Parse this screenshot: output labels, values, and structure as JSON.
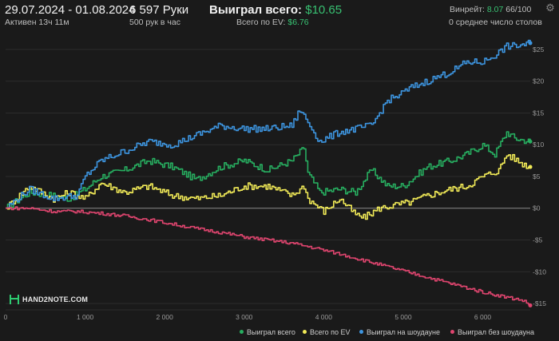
{
  "header": {
    "date_range": "29.07.2024 - 01.08.2024",
    "active": "Активен 13ч 11м",
    "hands": "6 597 Руки",
    "per_hour": "500 рук в час",
    "won_total_label": "Выиграл всего:",
    "won_total_value": "$10.65",
    "ev_label": "Всего по EV:",
    "ev_value": "$6.76",
    "winrate_label": "Винрейт:",
    "winrate_value": "8.07",
    "winrate_extra": "66/100",
    "tables": "0 среднее число столов"
  },
  "logo": {
    "text": "HAND2NOTE.COM"
  },
  "icons": {
    "settings": "gear-icon"
  },
  "colors": {
    "background": "#1a1a1a",
    "total": "#27ae60",
    "ev": "#f1ea57",
    "showdown": "#3d95e0",
    "nonshowdown": "#e0456f"
  },
  "chart_data": {
    "type": "line",
    "xlim": [
      0,
      6597
    ],
    "ylim": [
      -16,
      27
    ],
    "x_ticks": [
      0,
      1000,
      2000,
      3000,
      4000,
      5000,
      6000
    ],
    "x_tick_labels": [
      "0",
      "1 000",
      "2 000",
      "3 000",
      "4 000",
      "5 000",
      "6 000"
    ],
    "y_ticks": [
      25,
      20,
      15,
      10,
      5,
      0,
      -5,
      -10,
      -15
    ],
    "y_tick_labels": [
      "$25",
      "$20",
      "$15",
      "$10",
      "$5",
      "$0",
      "-$5",
      "-$10",
      "-$15"
    ],
    "grid": true,
    "legend_position": "bottom-right",
    "series": [
      {
        "name": "Выиграл всего",
        "color": "#27ae60",
        "x": [
          0,
          300,
          600,
          800,
          1000,
          1200,
          1500,
          1800,
          2100,
          2400,
          2700,
          3000,
          3300,
          3600,
          3750,
          3800,
          3950,
          4200,
          4400,
          4600,
          4800,
          5000,
          5300,
          5600,
          5800,
          6000,
          6150,
          6300,
          6400,
          6597
        ],
        "y": [
          0,
          2.5,
          2,
          1.5,
          3,
          5,
          6,
          7.5,
          6.5,
          4.5,
          6.5,
          7.5,
          6,
          7.5,
          9.5,
          5.5,
          2.5,
          3,
          2.5,
          6,
          3.5,
          3.5,
          6.5,
          7.5,
          8.5,
          10,
          8.5,
          12,
          11,
          10.5
        ]
      },
      {
        "name": "Всего по EV",
        "color": "#f1ea57",
        "x": [
          0,
          300,
          600,
          800,
          1000,
          1200,
          1500,
          1800,
          2100,
          2400,
          2700,
          3000,
          3300,
          3600,
          3750,
          3800,
          4000,
          4200,
          4400,
          4500,
          4700,
          4900,
          5100,
          5300,
          5600,
          5800,
          6000,
          6200,
          6300,
          6500,
          6597
        ],
        "y": [
          0,
          3.5,
          1.5,
          2.5,
          1.5,
          4,
          2.5,
          3.5,
          2,
          1.5,
          2,
          3.5,
          3.5,
          2,
          3.5,
          1.5,
          -0.5,
          1.5,
          -1,
          -1.5,
          0,
          0.5,
          1,
          2,
          3,
          3.5,
          5,
          6,
          8.5,
          7,
          6.5
        ]
      },
      {
        "name": "Выиграл на шоудауне",
        "color": "#3d95e0",
        "x": [
          0,
          300,
          600,
          900,
          1000,
          1200,
          1500,
          1800,
          2100,
          2400,
          2700,
          3000,
          3300,
          3600,
          3700,
          3800,
          3950,
          4200,
          4600,
          4800,
          4900,
          5100,
          5300,
          5600,
          5800,
          6000,
          6200,
          6300,
          6400,
          6597
        ],
        "y": [
          0,
          3,
          1.5,
          2,
          5,
          7.5,
          9,
          10.5,
          10,
          11.5,
          13,
          12.5,
          12.5,
          13,
          15.5,
          13.5,
          10.5,
          12,
          13,
          17,
          17.5,
          19,
          20,
          21.5,
          23,
          23,
          24.5,
          25.5,
          25.5,
          26
        ]
      },
      {
        "name": "Выиграл без шоудауна",
        "color": "#e0456f",
        "x": [
          0,
          300,
          600,
          900,
          1200,
          1500,
          1800,
          2100,
          2400,
          2700,
          3000,
          3300,
          3600,
          3900,
          4200,
          4500,
          4800,
          5100,
          5400,
          5700,
          6000,
          6300,
          6500,
          6597
        ],
        "y": [
          0,
          0,
          -0.5,
          -0.5,
          -0.8,
          -1.2,
          -1.8,
          -2.5,
          -3.2,
          -3.8,
          -4.5,
          -5,
          -5.5,
          -6.3,
          -7.2,
          -8.2,
          -9.2,
          -10.2,
          -11.2,
          -12.2,
          -13.2,
          -14,
          -14.5,
          -15.3
        ]
      }
    ]
  }
}
